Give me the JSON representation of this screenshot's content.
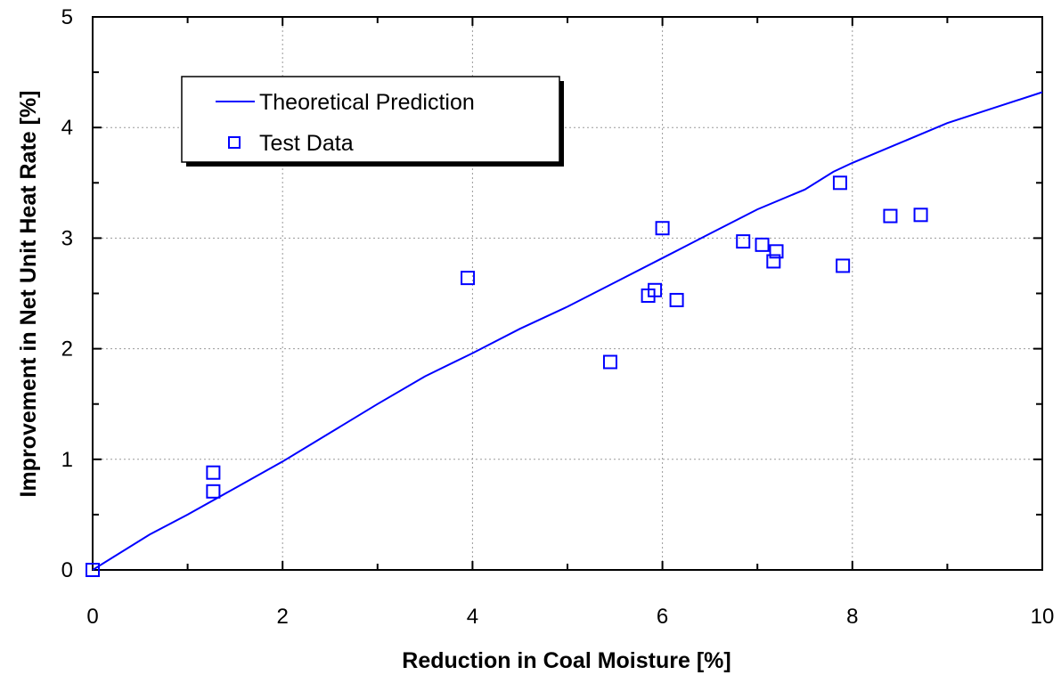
{
  "chart_data": {
    "type": "scatter",
    "title": "",
    "xlabel": "Reduction in Coal Moisture [%]",
    "ylabel": "Improvement in Net Unit Heat Rate [%]",
    "xlim": [
      0,
      10
    ],
    "ylim": [
      0,
      5
    ],
    "xticks": [
      0,
      2,
      4,
      6,
      8,
      10
    ],
    "yticks": [
      0,
      1,
      2,
      3,
      4,
      5
    ],
    "grid": true,
    "legend_position": "top-left",
    "colors": {
      "series": "#0000ff",
      "axes": "#000000",
      "grid": "#9a9a9a"
    },
    "series": [
      {
        "name": "Theoretical Prediction",
        "type": "line",
        "x": [
          0,
          0.6,
          1,
          1.5,
          2,
          2.5,
          3,
          3.5,
          4,
          4.5,
          5,
          5.5,
          6,
          6.5,
          7,
          7.5,
          7.8,
          8,
          8.5,
          9,
          9.5,
          10
        ],
        "y": [
          0,
          0.32,
          0.5,
          0.74,
          0.98,
          1.24,
          1.5,
          1.75,
          1.96,
          2.18,
          2.38,
          2.6,
          2.82,
          3.04,
          3.26,
          3.44,
          3.6,
          3.68,
          3.86,
          4.04,
          4.18,
          4.32
        ]
      },
      {
        "name": "Test Data",
        "type": "scatter",
        "x": [
          0,
          1.27,
          1.27,
          3.95,
          5.45,
          5.85,
          5.92,
          6.0,
          6.15,
          6.85,
          7.05,
          7.17,
          7.2,
          7.87,
          7.9,
          8.4,
          8.72
        ],
        "y": [
          0,
          0.88,
          0.71,
          2.64,
          1.88,
          2.48,
          2.53,
          3.09,
          2.44,
          2.97,
          2.94,
          2.79,
          2.88,
          3.5,
          2.75,
          3.2,
          3.21
        ]
      }
    ]
  }
}
